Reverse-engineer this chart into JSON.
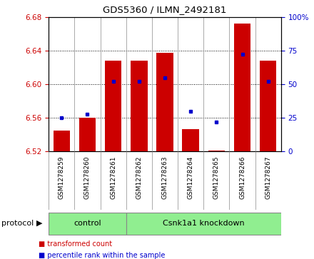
{
  "title": "GDS5360 / ILMN_2492181",
  "samples": [
    "GSM1278259",
    "GSM1278260",
    "GSM1278261",
    "GSM1278262",
    "GSM1278263",
    "GSM1278264",
    "GSM1278265",
    "GSM1278266",
    "GSM1278267"
  ],
  "transformed_count": [
    6.545,
    6.56,
    6.628,
    6.628,
    6.637,
    6.547,
    6.521,
    6.672,
    6.628
  ],
  "percentile_rank": [
    25,
    28,
    52,
    52,
    55,
    30,
    22,
    72,
    52
  ],
  "ylim_left": [
    6.52,
    6.68
  ],
  "ylim_right": [
    0,
    100
  ],
  "yticks_left": [
    6.52,
    6.56,
    6.6,
    6.64,
    6.68
  ],
  "yticks_right": [
    0,
    25,
    50,
    75,
    100
  ],
  "bar_color": "#cc0000",
  "point_color": "#0000cc",
  "bar_bottom": 6.52,
  "control_count": 3,
  "control_label": "control",
  "knockdown_label": "Csnk1a1 knockdown",
  "protocol_label": "protocol",
  "legend_items": [
    {
      "label": "transformed count",
      "color": "#cc0000"
    },
    {
      "label": "percentile rank within the sample",
      "color": "#0000cc"
    }
  ],
  "grid_color": "#000000",
  "bg_color": "#ffffff",
  "tick_color_left": "#cc0000",
  "tick_color_right": "#0000cc",
  "bar_width": 0.65,
  "gray_bg": "#d3d3d3",
  "green_bg": "#90ee90",
  "separator_color": "#888888"
}
